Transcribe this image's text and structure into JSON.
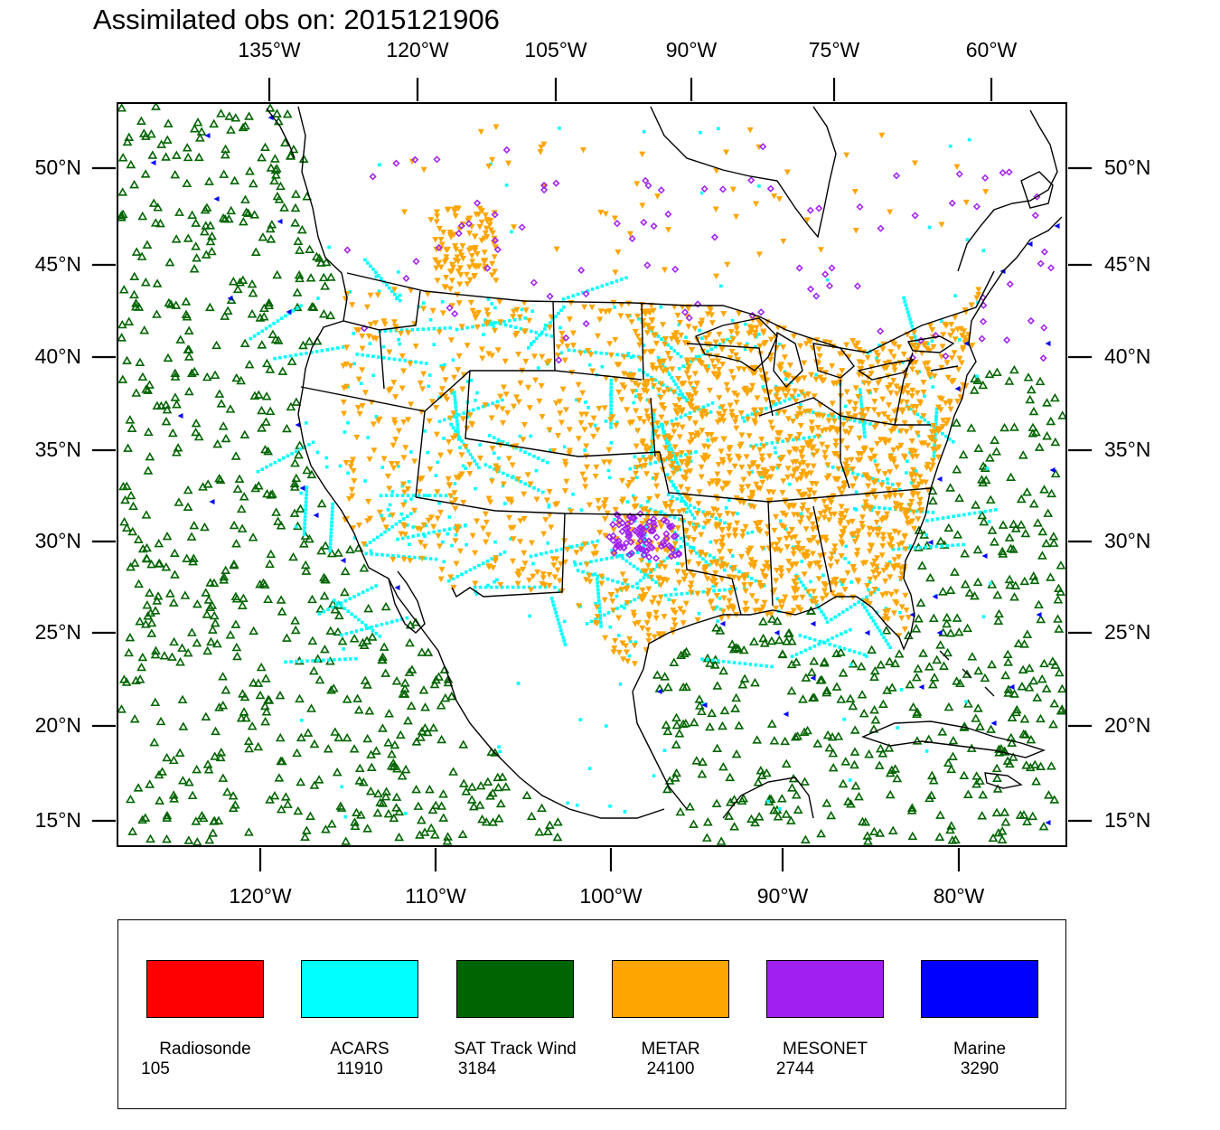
{
  "title": "Assimilated obs on: 2015121906",
  "top_lon_labels": [
    "135°W",
    "120°W",
    "105°W",
    "90°W",
    "75°W",
    "60°W"
  ],
  "bottom_lon_labels": [
    "120°W",
    "110°W",
    "100°W",
    "90°W",
    "80°W"
  ],
  "lat_labels": [
    "50°N",
    "45°N",
    "40°N",
    "35°N",
    "30°N",
    "25°N",
    "20°N",
    "15°N"
  ],
  "legend": [
    {
      "name": "Radiosonde",
      "count": "105",
      "color": "#ff0000"
    },
    {
      "name": "ACARS",
      "count": "11910",
      "color": "#00ffff"
    },
    {
      "name": "SAT Track Wind",
      "count": "3184",
      "color": "#006400"
    },
    {
      "name": "METAR",
      "count": "24100",
      "color": "#ffa500"
    },
    {
      "name": "MESONET",
      "count": "2744",
      "color": "#a020f0"
    },
    {
      "name": "Marine",
      "count": "3290",
      "color": "#0000ff"
    }
  ],
  "markers": {
    "acars": "square",
    "sat_track_wind": "open-triangle",
    "metar": "inverted-triangle",
    "mesonet": "diamond",
    "marine": "left-triangle"
  }
}
